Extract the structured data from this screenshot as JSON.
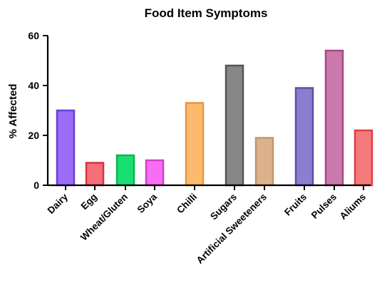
{
  "chart_data": {
    "type": "bar",
    "title": "Food Item Symptoms",
    "xlabel": "",
    "ylabel": "% Affected",
    "ylim": [
      0,
      60
    ],
    "yticks": [
      0,
      20,
      40,
      60
    ],
    "grid": false,
    "categories": [
      "Dairy",
      "Egg",
      "Wheat/Gluten",
      "Soya",
      "Chilli",
      "Sugars",
      "Artificial Sweeteners",
      "Fruits",
      "Pulses",
      "Aliums"
    ],
    "values": [
      30,
      9,
      12,
      10,
      33,
      48,
      19,
      39,
      54,
      22
    ],
    "fill_colors": [
      "#9b6cf7",
      "#f56e7a",
      "#19df72",
      "#f66ff3",
      "#fdb96e",
      "#878787",
      "#dbb28c",
      "#8b7ed0",
      "#c979ab",
      "#f47a7c"
    ],
    "stroke_colors": [
      "#6a3fd4",
      "#d9333d",
      "#0bb255",
      "#d23ecb",
      "#e8943e",
      "#555555",
      "#c0956c",
      "#5e4fa8",
      "#a9478a",
      "#dd3f44"
    ]
  }
}
